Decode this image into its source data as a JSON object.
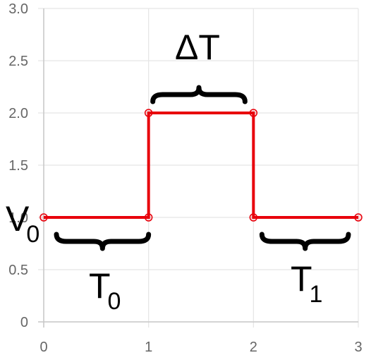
{
  "chart_data": {
    "type": "line",
    "step": true,
    "x": [
      0,
      1,
      1,
      2,
      2,
      3
    ],
    "series": [
      {
        "values": [
          1,
          1,
          2,
          2,
          1,
          1
        ],
        "color": "#e8000b"
      }
    ],
    "xlim": [
      0,
      3
    ],
    "ylim": [
      0,
      3
    ],
    "xticks": [
      0,
      1,
      2,
      3
    ],
    "xtick_labels": [
      "0",
      "1",
      "2",
      "3"
    ],
    "yticks": [
      0,
      0.5,
      1,
      1.5,
      2,
      2.5,
      3
    ],
    "ytick_labels": [
      "0",
      "0.5",
      "1.0",
      "1.5",
      "2.0",
      "2.5",
      "3.0"
    ],
    "grid": true,
    "annotations": {
      "v0": {
        "main": "V",
        "sub": "0"
      },
      "t0": {
        "main": "T",
        "sub": "0",
        "x_range": [
          0,
          1
        ],
        "y": 1
      },
      "delta_t": {
        "label": "ΔT",
        "x_range": [
          1,
          2
        ],
        "y": 2
      },
      "t1": {
        "main": "T",
        "sub": "1",
        "x_range": [
          2,
          3
        ],
        "y": 1
      }
    }
  }
}
